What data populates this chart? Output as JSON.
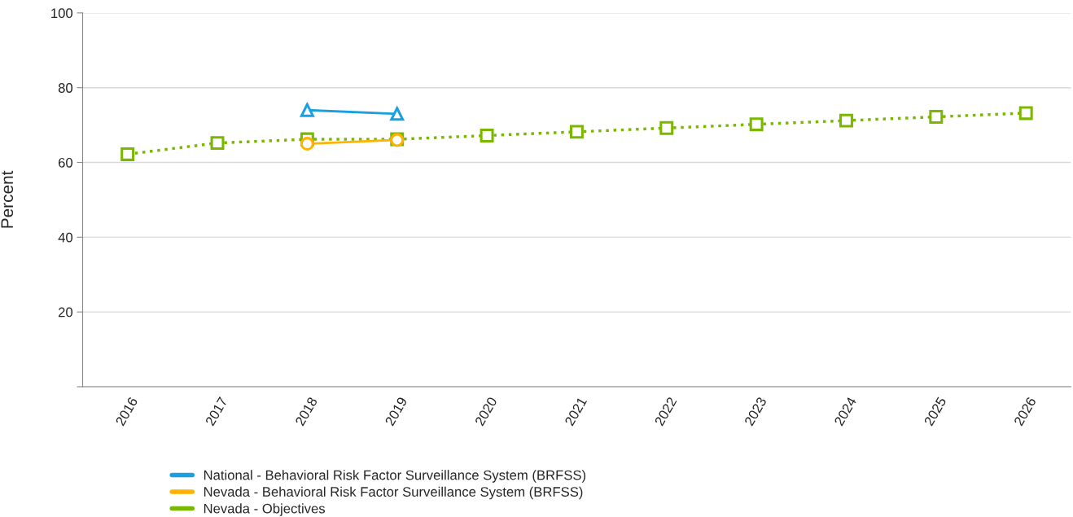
{
  "chart_data": {
    "type": "line",
    "ylabel": "Percent",
    "categories": [
      "2016",
      "2017",
      "2018",
      "2019",
      "2020",
      "2021",
      "2022",
      "2023",
      "2024",
      "2025",
      "2026"
    ],
    "ylim": [
      0,
      100
    ],
    "yticks": [
      {
        "value": 0,
        "label": null
      },
      20,
      40,
      60,
      80,
      100
    ],
    "grid": "y",
    "legend": "bottom",
    "series": [
      {
        "name": "National - Behavioral Risk Factor Surveillance System (BRFSS)",
        "color": "#1aa0e0",
        "marker": "triangle",
        "line_style": "solid",
        "values": [
          null,
          null,
          74,
          73,
          null,
          null,
          null,
          null,
          null,
          null,
          null
        ]
      },
      {
        "name": "Nevada - Behavioral Risk Factor Surveillance System (BRFSS)",
        "color": "#ffb300",
        "marker": "circle",
        "line_style": "solid",
        "values": [
          null,
          null,
          65,
          66,
          null,
          null,
          null,
          null,
          null,
          null,
          null
        ]
      },
      {
        "name": "Nevada - Objectives",
        "color": "#7ab800",
        "marker": "square",
        "line_style": "dotted",
        "values": [
          62.2,
          65.2,
          66.2,
          66.2,
          67.2,
          68.2,
          69.2,
          70.2,
          71.2,
          72.2,
          73.2
        ]
      }
    ]
  }
}
